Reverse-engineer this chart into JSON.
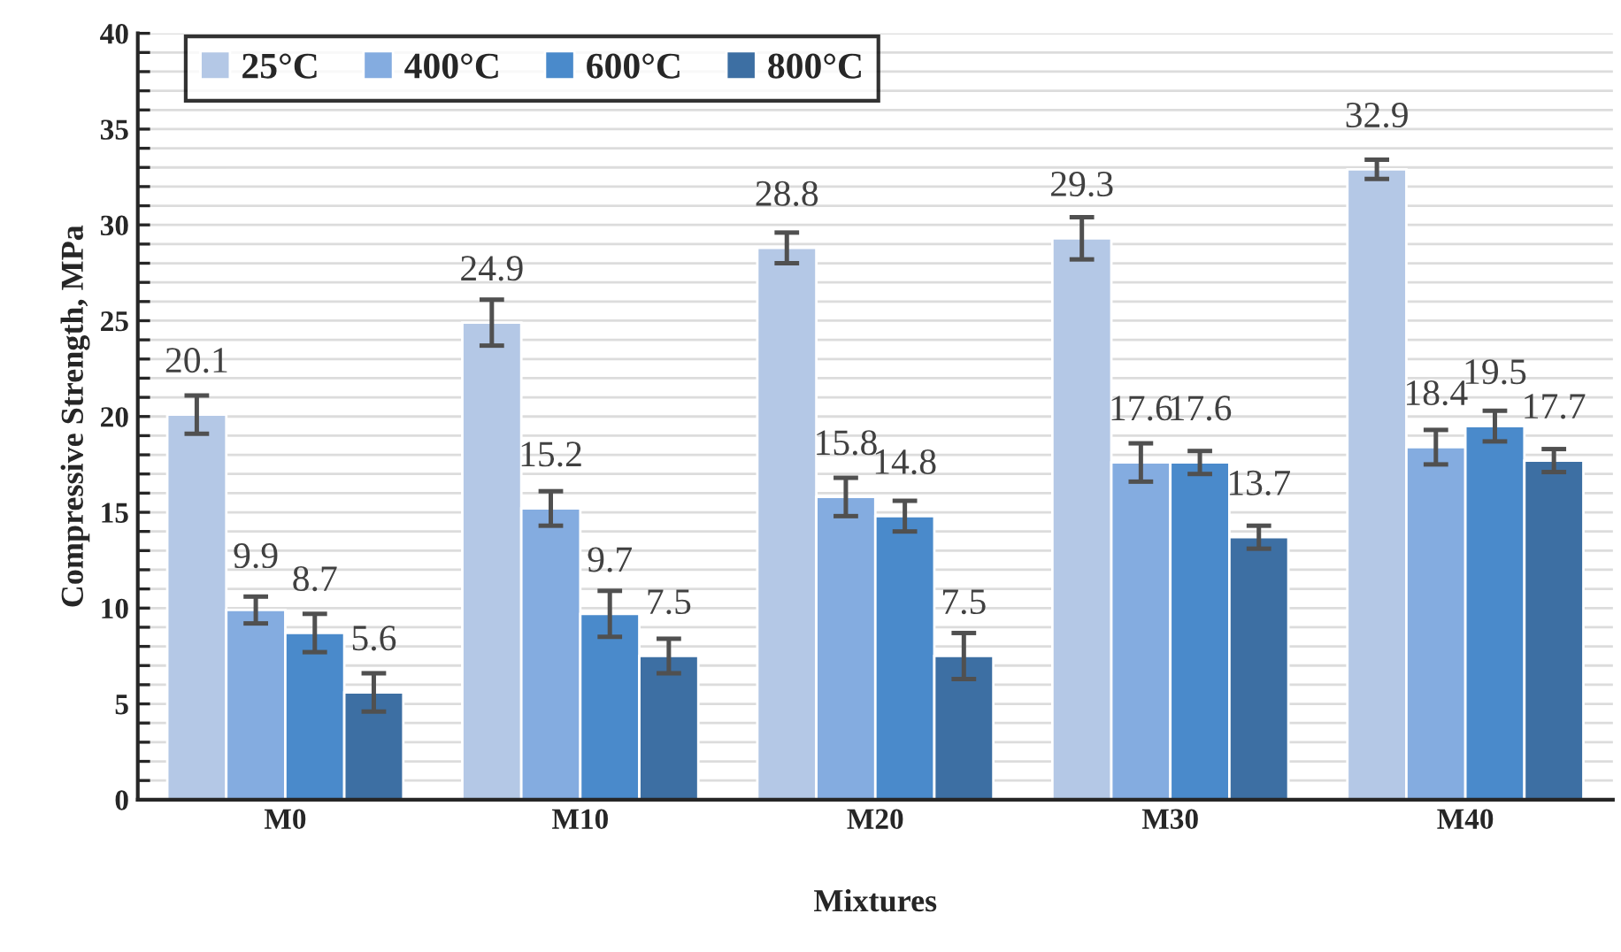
{
  "chart_data": {
    "type": "bar",
    "xlabel": "Mixtures",
    "ylabel": "Compressive Strength, MPa",
    "categories": [
      "M0",
      "M10",
      "M20",
      "M30",
      "M40"
    ],
    "series": [
      {
        "name": "25°C",
        "color": "#b4c8e6",
        "values": [
          20.1,
          24.9,
          28.8,
          29.3,
          32.9
        ],
        "errors": [
          1.0,
          1.2,
          0.8,
          1.1,
          0.5
        ]
      },
      {
        "name": "400°C",
        "color": "#84ace0",
        "values": [
          9.9,
          15.2,
          15.8,
          17.6,
          18.4
        ],
        "errors": [
          0.7,
          0.9,
          1.0,
          1.0,
          0.9
        ]
      },
      {
        "name": "600°C",
        "color": "#4a8acb",
        "values": [
          8.7,
          9.7,
          14.8,
          17.6,
          19.5
        ],
        "errors": [
          1.0,
          1.2,
          0.8,
          0.6,
          0.8
        ]
      },
      {
        "name": "800°C",
        "color": "#3d6fa3",
        "values": [
          5.6,
          7.5,
          7.5,
          13.7,
          17.7
        ],
        "errors": [
          1.0,
          0.9,
          1.2,
          0.6,
          0.6
        ]
      }
    ],
    "ylim": [
      0,
      40
    ],
    "yticks": [
      0,
      {
        "value": 1,
        "label": null
      },
      {
        "value": 2,
        "label": null
      },
      {
        "value": 3,
        "label": null
      },
      {
        "value": 4,
        "label": null
      },
      5,
      {
        "value": 6,
        "label": null
      },
      {
        "value": 7,
        "label": null
      },
      {
        "value": 8,
        "label": null
      },
      {
        "value": 9,
        "label": null
      },
      10,
      {
        "value": 11,
        "label": null
      },
      {
        "value": 12,
        "label": null
      },
      {
        "value": 13,
        "label": null
      },
      {
        "value": 14,
        "label": null
      },
      15,
      {
        "value": 16,
        "label": null
      },
      {
        "value": 17,
        "label": null
      },
      {
        "value": 18,
        "label": null
      },
      {
        "value": 19,
        "label": null
      },
      20,
      {
        "value": 21,
        "label": null
      },
      {
        "value": 22,
        "label": null
      },
      {
        "value": 23,
        "label": null
      },
      {
        "value": 24,
        "label": null
      },
      25,
      {
        "value": 26,
        "label": null
      },
      {
        "value": 27,
        "label": null
      },
      {
        "value": 28,
        "label": null
      },
      {
        "value": 29,
        "label": null
      },
      30,
      {
        "value": 31,
        "label": null
      },
      {
        "value": 32,
        "label": null
      },
      {
        "value": 33,
        "label": null
      },
      {
        "value": 34,
        "label": null
      },
      35,
      {
        "value": 36,
        "label": null
      },
      {
        "value": 37,
        "label": null
      },
      {
        "value": 38,
        "label": null
      },
      {
        "value": 39,
        "label": null
      },
      40
    ],
    "grid": "y",
    "legend": "top left",
    "data_labels": true
  }
}
